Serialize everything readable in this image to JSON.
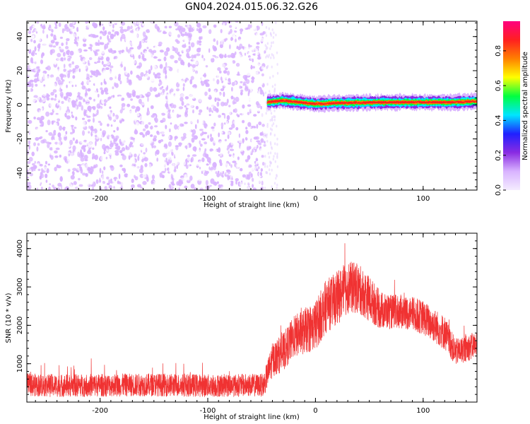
{
  "chart_data": [
    {
      "type": "heatmap",
      "title": "GN04.2024.015.06.32.G26",
      "xlabel": "Height of straight line (km)",
      "ylabel": "Frequency (Hz)",
      "xlim": [
        -268,
        150
      ],
      "ylim": [
        -50,
        49
      ],
      "xticks": [
        -200,
        -100,
        0,
        100
      ],
      "yticks": [
        -40,
        -20,
        0,
        20,
        40
      ],
      "colorbar": {
        "label": "Normalized spectral amplitude",
        "range": [
          0,
          0.97
        ],
        "ticks": [
          0.0,
          0.2,
          0.4,
          0.6,
          0.8
        ],
        "colors": [
          "#ffffff",
          "#d9b3ff",
          "#8a2be2",
          "#2020ff",
          "#00e5ff",
          "#00ff40",
          "#ffff00",
          "#ff8000",
          "#ff2020",
          "#ff007f"
        ]
      },
      "regions": [
        {
          "x": [
            -268,
            -47
          ],
          "freq": [
            -50,
            49
          ],
          "amplitude": [
            0.0,
            0.15
          ],
          "description_level": "scattered low amplitude noise"
        },
        {
          "x": [
            -45,
            150
          ],
          "freq": [
            -1,
            3
          ],
          "amplitude": [
            0.3,
            0.9
          ],
          "description_level": "narrow high amplitude band near 1 Hz"
        }
      ],
      "band_center_hz": [
        {
          "x": -45,
          "f": 1.5
        },
        {
          "x": -30,
          "f": 2.5
        },
        {
          "x": -15,
          "f": 1.5
        },
        {
          "x": 0,
          "f": 0.5
        },
        {
          "x": 20,
          "f": 1
        },
        {
          "x": 60,
          "f": 1.5
        },
        {
          "x": 100,
          "f": 1.5
        },
        {
          "x": 130,
          "f": 1.5
        },
        {
          "x": 150,
          "f": 2
        }
      ]
    },
    {
      "type": "line",
      "xlabel": "Height of straight line (km)",
      "ylabel": "SNR (10 * v/v)",
      "xlim": [
        -268,
        150
      ],
      "ylim": [
        0,
        4400
      ],
      "xticks": [
        -200,
        -100,
        0,
        100
      ],
      "yticks": [
        1000,
        2000,
        3000,
        4000
      ],
      "color": "#f03232",
      "series": [
        {
          "x": [
            -268,
            -240,
            -200,
            -150,
            -100,
            -60,
            -48,
            -40,
            -30,
            -20,
            -10,
            0,
            10,
            20,
            30,
            40,
            50,
            60,
            70,
            80,
            90,
            100,
            110,
            120,
            130,
            140,
            150
          ],
          "values": [
            450,
            430,
            440,
            450,
            430,
            440,
            440,
            1100,
            1300,
            1700,
            1850,
            2000,
            2500,
            2700,
            3000,
            2950,
            2700,
            2400,
            2350,
            2350,
            2300,
            2200,
            2000,
            1800,
            1300,
            1400,
            1500
          ],
          "noise_amplitude": [
            300,
            300,
            300,
            300,
            300,
            300,
            300,
            450,
            500,
            550,
            600,
            650,
            700,
            700,
            700,
            650,
            600,
            500,
            450,
            450,
            450,
            450,
            450,
            450,
            350,
            350,
            350
          ]
        }
      ]
    }
  ]
}
